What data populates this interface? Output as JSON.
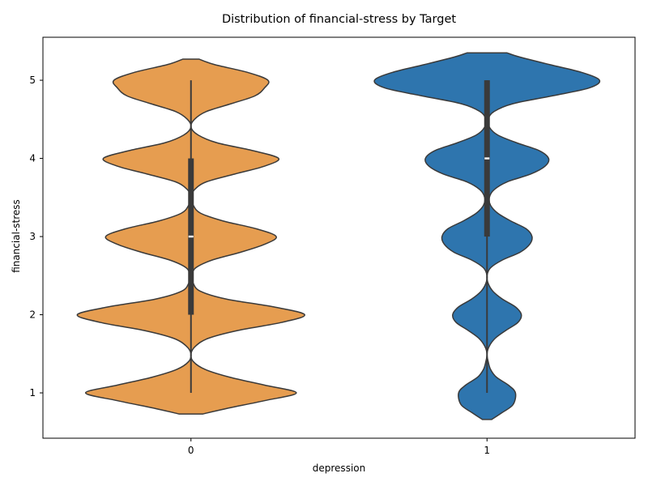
{
  "chart_data": {
    "type": "violin",
    "title": "Distribution of financial-stress by Target",
    "xlabel": "depression",
    "ylabel": "financial-stress",
    "categories": [
      "0",
      "1"
    ],
    "y_ticks": [
      1,
      2,
      3,
      4,
      5
    ],
    "ylim": [
      0.42,
      5.55
    ],
    "grid": false,
    "legend": "none",
    "series": [
      {
        "category": "0",
        "color": "#e69d50",
        "density_max_width_fraction": 0.8,
        "density_profile": [
          [
            0.73,
            0.1
          ],
          [
            0.8,
            0.3
          ],
          [
            0.9,
            0.62
          ],
          [
            1.0,
            0.89
          ],
          [
            1.1,
            0.62
          ],
          [
            1.2,
            0.33
          ],
          [
            1.3,
            0.12
          ],
          [
            1.4,
            0.02
          ],
          [
            1.5,
            0.0
          ],
          [
            1.6,
            0.04
          ],
          [
            1.7,
            0.15
          ],
          [
            1.8,
            0.4
          ],
          [
            1.9,
            0.76
          ],
          [
            2.0,
            0.96
          ],
          [
            2.1,
            0.7
          ],
          [
            2.2,
            0.3
          ],
          [
            2.3,
            0.08
          ],
          [
            2.4,
            0.02
          ],
          [
            2.5,
            0.01
          ],
          [
            2.6,
            0.04
          ],
          [
            2.7,
            0.18
          ],
          [
            2.8,
            0.42
          ],
          [
            2.9,
            0.62
          ],
          [
            3.0,
            0.72
          ],
          [
            3.1,
            0.55
          ],
          [
            3.2,
            0.27
          ],
          [
            3.3,
            0.08
          ],
          [
            3.4,
            0.02
          ],
          [
            3.5,
            0.0
          ],
          [
            3.6,
            0.03
          ],
          [
            3.7,
            0.13
          ],
          [
            3.8,
            0.37
          ],
          [
            3.9,
            0.62
          ],
          [
            4.0,
            0.74
          ],
          [
            4.1,
            0.52
          ],
          [
            4.2,
            0.22
          ],
          [
            4.3,
            0.06
          ],
          [
            4.4,
            0.0
          ],
          [
            4.5,
            0.03
          ],
          [
            4.6,
            0.13
          ],
          [
            4.7,
            0.34
          ],
          [
            4.8,
            0.54
          ],
          [
            4.9,
            0.62
          ],
          [
            5.0,
            0.65
          ],
          [
            5.1,
            0.48
          ],
          [
            5.2,
            0.2
          ],
          [
            5.27,
            0.07
          ]
        ],
        "box": {
          "whisker_low": 1,
          "q1": 2,
          "median": 3,
          "q3": 4,
          "whisker_high": 5
        }
      },
      {
        "category": "1",
        "color": "#2e75ae",
        "density_max_width_fraction": 0.8,
        "density_profile": [
          [
            0.66,
            0.04
          ],
          [
            0.75,
            0.13
          ],
          [
            0.85,
            0.22
          ],
          [
            1.0,
            0.24
          ],
          [
            1.1,
            0.18
          ],
          [
            1.2,
            0.08
          ],
          [
            1.3,
            0.03
          ],
          [
            1.4,
            0.01
          ],
          [
            1.5,
            0.0
          ],
          [
            1.6,
            0.02
          ],
          [
            1.7,
            0.07
          ],
          [
            1.8,
            0.16
          ],
          [
            1.9,
            0.26
          ],
          [
            2.0,
            0.29
          ],
          [
            2.1,
            0.24
          ],
          [
            2.2,
            0.13
          ],
          [
            2.3,
            0.05
          ],
          [
            2.4,
            0.01
          ],
          [
            2.5,
            0.0
          ],
          [
            2.6,
            0.03
          ],
          [
            2.7,
            0.13
          ],
          [
            2.8,
            0.28
          ],
          [
            2.9,
            0.36
          ],
          [
            3.0,
            0.38
          ],
          [
            3.1,
            0.33
          ],
          [
            3.2,
            0.2
          ],
          [
            3.3,
            0.09
          ],
          [
            3.4,
            0.03
          ],
          [
            3.5,
            0.02
          ],
          [
            3.6,
            0.06
          ],
          [
            3.7,
            0.17
          ],
          [
            3.8,
            0.37
          ],
          [
            3.9,
            0.49
          ],
          [
            4.0,
            0.52
          ],
          [
            4.1,
            0.44
          ],
          [
            4.2,
            0.25
          ],
          [
            4.3,
            0.09
          ],
          [
            4.4,
            0.02
          ],
          [
            4.5,
            0.01
          ],
          [
            4.6,
            0.06
          ],
          [
            4.7,
            0.22
          ],
          [
            4.8,
            0.55
          ],
          [
            4.9,
            0.86
          ],
          [
            5.0,
            0.95
          ],
          [
            5.1,
            0.8
          ],
          [
            5.2,
            0.53
          ],
          [
            5.3,
            0.27
          ],
          [
            5.35,
            0.17
          ]
        ],
        "box": {
          "whisker_low": 1,
          "q1": 3,
          "median": 4,
          "q3": 5,
          "whisker_high": 5
        }
      }
    ]
  }
}
